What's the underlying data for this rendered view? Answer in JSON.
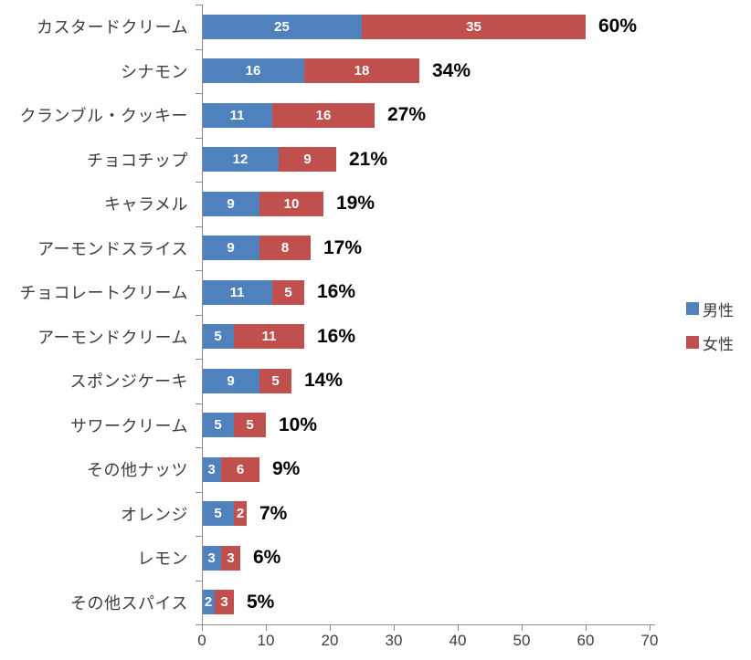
{
  "chart_data": {
    "type": "bar",
    "orientation": "horizontal",
    "stacked": true,
    "title": "",
    "categories": [
      "カスタードクリーム",
      "シナモン",
      "クランブル・クッキー",
      "チョコチップ",
      "キャラメル",
      "アーモンドスライス",
      "チョコレートクリーム",
      "アーモンドクリーム",
      "スポンジケーキ",
      "サワークリーム",
      "その他ナッツ",
      "オレンジ",
      "レモン",
      "その他スパイス"
    ],
    "series": [
      {
        "name": "男性",
        "color": "#4F81BD",
        "values": [
          25,
          16,
          11,
          12,
          9,
          9,
          11,
          5,
          9,
          5,
          3,
          5,
          3,
          2
        ]
      },
      {
        "name": "女性",
        "color": "#C0504D",
        "values": [
          35,
          18,
          16,
          9,
          10,
          8,
          5,
          11,
          5,
          5,
          6,
          2,
          3,
          3
        ]
      }
    ],
    "total_labels": [
      "60%",
      "34%",
      "27%",
      "21%",
      "19%",
      "17%",
      "16%",
      "16%",
      "14%",
      "10%",
      "9%",
      "7%",
      "6%",
      "5%"
    ],
    "x_axis": {
      "min": 0,
      "max": 70,
      "ticks": [
        0,
        10,
        20,
        30,
        40,
        50,
        60,
        70
      ]
    },
    "legend": {
      "position": "right",
      "entries": [
        "男性",
        "女性"
      ]
    },
    "grid": false
  },
  "style": {
    "male_color": "#4F81BD",
    "female_color": "#C0504D",
    "axis_color": "#8C8C8C",
    "segment_value_color": "#FFFFFF",
    "total_label_color": "#000000"
  }
}
